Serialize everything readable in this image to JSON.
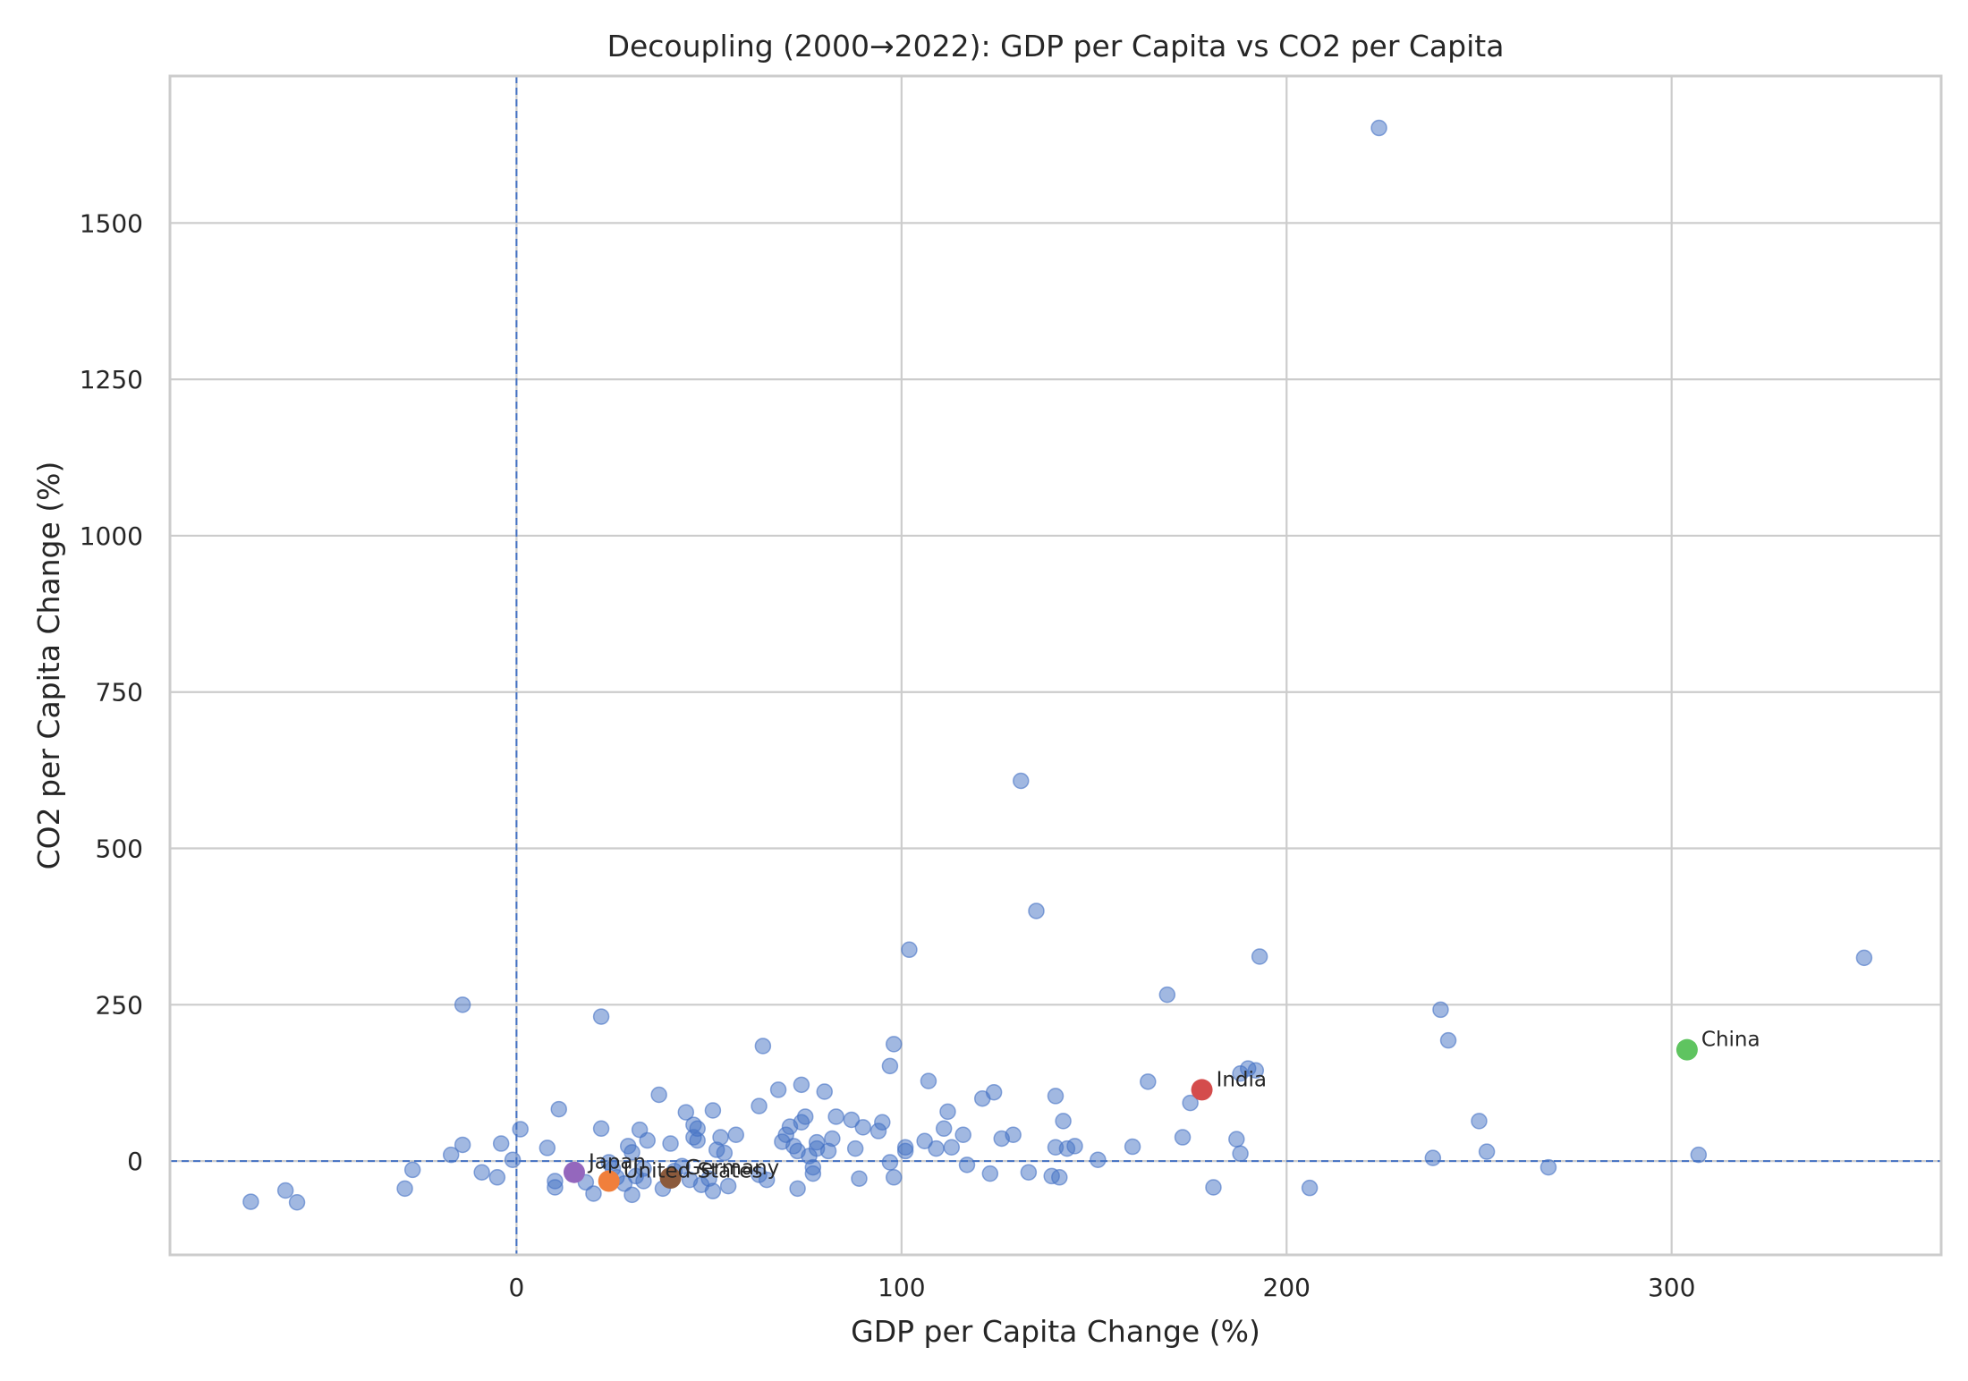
{
  "chart_data": {
    "type": "scatter",
    "title": "Decoupling (2000→2022): GDP per Capita vs CO2 per Capita",
    "xlabel": "GDP per Capita Change (%)",
    "ylabel": "CO2 per Capita Change (%)",
    "xlim": [
      -90,
      370
    ],
    "ylim": [
      -150,
      1735
    ],
    "xticks": [
      0,
      100,
      200,
      300
    ],
    "yticks": [
      0,
      250,
      500,
      750,
      1000,
      1250,
      1500
    ],
    "grid": true,
    "reference_lines": {
      "x": 0,
      "y": 0
    },
    "colors": {
      "points": "#4472c4",
      "reference": "#4472c4",
      "grid": "#cccccc"
    },
    "series": [
      {
        "points": [
          [
            -69,
            -65
          ],
          [
            -60,
            -47
          ],
          [
            -57,
            -66
          ],
          [
            -29,
            -44
          ],
          [
            -27,
            -14
          ],
          [
            -17,
            10
          ],
          [
            -14,
            26
          ],
          [
            -14,
            250
          ],
          [
            -9,
            -18
          ],
          [
            -5,
            -26
          ],
          [
            -4,
            28
          ],
          [
            -1,
            2
          ],
          [
            1,
            51
          ],
          [
            8,
            21
          ],
          [
            10,
            -32
          ],
          [
            10,
            -42
          ],
          [
            11,
            83
          ],
          [
            18,
            -34
          ],
          [
            20,
            -52
          ],
          [
            22,
            52
          ],
          [
            22,
            231
          ],
          [
            24,
            -2
          ],
          [
            25,
            -12
          ],
          [
            26,
            -26
          ],
          [
            28,
            -36
          ],
          [
            29,
            24
          ],
          [
            30,
            -54
          ],
          [
            30,
            14
          ],
          [
            31,
            -24
          ],
          [
            32,
            50
          ],
          [
            33,
            -32
          ],
          [
            33,
            -12
          ],
          [
            34,
            33
          ],
          [
            37,
            106
          ],
          [
            38,
            -44
          ],
          [
            40,
            28
          ],
          [
            41,
            -16
          ],
          [
            43,
            -8
          ],
          [
            44,
            78
          ],
          [
            45,
            -30
          ],
          [
            46,
            38
          ],
          [
            46,
            58
          ],
          [
            47,
            33
          ],
          [
            47,
            52
          ],
          [
            48,
            -38
          ],
          [
            50,
            -28
          ],
          [
            51,
            -48
          ],
          [
            51,
            81
          ],
          [
            52,
            18
          ],
          [
            53,
            38
          ],
          [
            54,
            13
          ],
          [
            55,
            -40
          ],
          [
            57,
            42
          ],
          [
            63,
            -22
          ],
          [
            63,
            88
          ],
          [
            64,
            184
          ],
          [
            65,
            -30
          ],
          [
            68,
            114
          ],
          [
            69,
            31
          ],
          [
            70,
            42
          ],
          [
            71,
            55
          ],
          [
            72,
            24
          ],
          [
            73,
            16
          ],
          [
            74,
            62
          ],
          [
            74,
            122
          ],
          [
            75,
            71
          ],
          [
            73,
            -44
          ],
          [
            76,
            8
          ],
          [
            77,
            -20
          ],
          [
            77,
            -10
          ],
          [
            78,
            20
          ],
          [
            78,
            30
          ],
          [
            80,
            111
          ],
          [
            81,
            16
          ],
          [
            82,
            36
          ],
          [
            83,
            71
          ],
          [
            87,
            66
          ],
          [
            88,
            20
          ],
          [
            89,
            -28
          ],
          [
            90,
            54
          ],
          [
            94,
            48
          ],
          [
            95,
            62
          ],
          [
            97,
            -2
          ],
          [
            97,
            152
          ],
          [
            98,
            -26
          ],
          [
            98,
            187
          ],
          [
            101,
            16
          ],
          [
            101,
            22
          ],
          [
            102,
            338
          ],
          [
            106,
            32
          ],
          [
            107,
            128
          ],
          [
            109,
            20
          ],
          [
            111,
            52
          ],
          [
            112,
            79
          ],
          [
            113,
            22
          ],
          [
            116,
            42
          ],
          [
            117,
            -6
          ],
          [
            121,
            100
          ],
          [
            123,
            -20
          ],
          [
            124,
            110
          ],
          [
            126,
            36
          ],
          [
            129,
            42
          ],
          [
            131,
            608
          ],
          [
            133,
            -18
          ],
          [
            135,
            400
          ],
          [
            139,
            -24
          ],
          [
            140,
            104
          ],
          [
            140,
            22
          ],
          [
            141,
            -26
          ],
          [
            142,
            64
          ],
          [
            143,
            20
          ],
          [
            145,
            24
          ],
          [
            151,
            2
          ],
          [
            160,
            23
          ],
          [
            164,
            127
          ],
          [
            169,
            266
          ],
          [
            173,
            38
          ],
          [
            175,
            93
          ],
          [
            181,
            -42
          ],
          [
            187,
            35
          ],
          [
            188,
            12
          ],
          [
            188,
            140
          ],
          [
            190,
            148
          ],
          [
            192,
            145
          ],
          [
            193,
            327
          ],
          [
            206,
            -43
          ],
          [
            224,
            1652
          ],
          [
            238,
            5
          ],
          [
            240,
            242
          ],
          [
            242,
            193
          ],
          [
            250,
            64
          ],
          [
            252,
            15
          ],
          [
            268,
            -10
          ],
          [
            307,
            10
          ],
          [
            350,
            325
          ]
        ]
      },
      {
        "name": "China",
        "color": "#5fc460",
        "points": [
          [
            304,
            178
          ]
        ]
      },
      {
        "name": "India",
        "color": "#d44c4c",
        "points": [
          [
            178,
            114
          ]
        ]
      },
      {
        "name": "Germany",
        "color": "#8b5a3c",
        "points": [
          [
            40,
            -27
          ]
        ]
      },
      {
        "name": "United States",
        "color": "#f07f3c",
        "points": [
          [
            24,
            -32
          ]
        ]
      },
      {
        "name": "Japan",
        "color": "#9467bd",
        "points": [
          [
            15,
            -18
          ]
        ]
      }
    ]
  }
}
